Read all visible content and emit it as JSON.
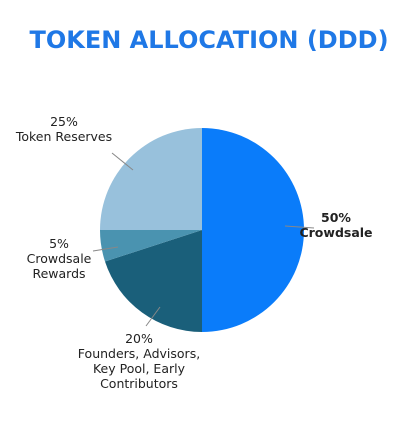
{
  "chart_data": {
    "type": "pie",
    "title": "TOKEN ALLOCATION (DDD)",
    "slices": [
      {
        "label": "Crowdsale",
        "pct_text": "50%",
        "label_lines": [
          "Crowdsale"
        ],
        "value": 50,
        "color": "#0a7cfa"
      },
      {
        "label": "Founders, Advisors, Key Pool, Early Contributors",
        "pct_text": "20%",
        "label_lines": [
          "Founders, Advisors,",
          "Key Pool, Early",
          "Contributors"
        ],
        "value": 20,
        "color": "#1a5f7a"
      },
      {
        "label": "Crowdsale Rewards",
        "pct_text": "5%",
        "label_lines": [
          "Crowdsale",
          "Rewards"
        ],
        "value": 5,
        "color": "#4a93b0"
      },
      {
        "label": "Token Reserves",
        "pct_text": "25%",
        "label_lines": [
          "Token Reserves"
        ],
        "value": 25,
        "color": "#98c1dc"
      }
    ]
  },
  "colors": {
    "title": "#1f78e6",
    "label_text": "#222222",
    "leader_line": "#888888"
  }
}
